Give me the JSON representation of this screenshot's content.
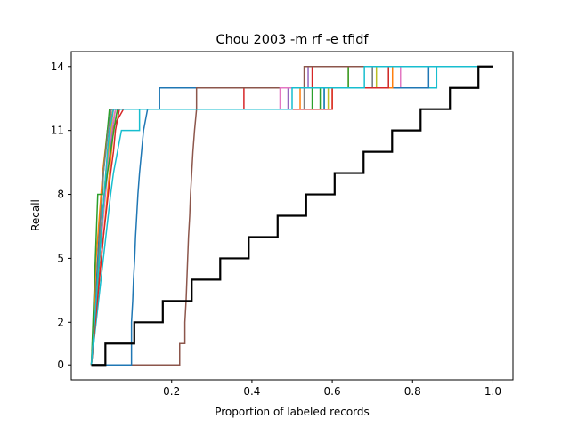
{
  "chart_data": {
    "type": "line",
    "title": "Chou 2003 -m rf -e tfidf",
    "xlabel": "Proportion of labeled records",
    "ylabel": "Recall",
    "xlim": [
      -0.05,
      1.05
    ],
    "ylim": [
      -0.7,
      14.7
    ],
    "xticks": [
      0.2,
      0.4,
      0.6,
      0.8,
      1.0
    ],
    "xtick_labels": [
      "0.2",
      "0.4",
      "0.6",
      "0.8",
      "1.0"
    ],
    "yticks": [
      0,
      2,
      5,
      8,
      11,
      14
    ],
    "ytick_labels": [
      "0",
      "2",
      "5",
      "8",
      "11",
      "14"
    ],
    "grid": false,
    "legend": "none",
    "series": [
      {
        "color": "#1f77b4",
        "width": 1.5,
        "points": [
          [
            0,
            0
          ],
          [
            0.003,
            1
          ],
          [
            0.006,
            2
          ],
          [
            0.01,
            3
          ],
          [
            0.013,
            4
          ],
          [
            0.016,
            5
          ],
          [
            0.019,
            6
          ],
          [
            0.022,
            7
          ],
          [
            0.026,
            8
          ],
          [
            0.03,
            9
          ],
          [
            0.035,
            10
          ],
          [
            0.04,
            11
          ],
          [
            0.05,
            12
          ],
          [
            0.17,
            12
          ],
          [
            0.17,
            13
          ],
          [
            0.7,
            13
          ],
          [
            0.7,
            14
          ],
          [
            0.97,
            14
          ]
        ]
      },
      {
        "color": "#ff7f0e",
        "width": 1.5,
        "points": [
          [
            0,
            0
          ],
          [
            0.004,
            1
          ],
          [
            0.008,
            3
          ],
          [
            0.012,
            5
          ],
          [
            0.02,
            7
          ],
          [
            0.028,
            9
          ],
          [
            0.034,
            10
          ],
          [
            0.04,
            11
          ],
          [
            0.055,
            12
          ],
          [
            0.52,
            12
          ],
          [
            0.52,
            13
          ],
          [
            0.64,
            13
          ],
          [
            0.64,
            14
          ],
          [
            0.97,
            14
          ]
        ]
      },
      {
        "color": "#2ca02c",
        "width": 1.5,
        "points": [
          [
            0,
            0
          ],
          [
            0.002,
            1
          ],
          [
            0.004,
            2
          ],
          [
            0.006,
            3
          ],
          [
            0.008,
            4
          ],
          [
            0.01,
            5
          ],
          [
            0.012,
            6
          ],
          [
            0.014,
            7
          ],
          [
            0.016,
            8
          ],
          [
            0.028,
            8
          ],
          [
            0.03,
            9
          ],
          [
            0.035,
            10
          ],
          [
            0.04,
            11
          ],
          [
            0.045,
            12
          ],
          [
            0.57,
            12
          ],
          [
            0.57,
            13
          ],
          [
            0.64,
            13
          ],
          [
            0.64,
            14
          ],
          [
            0.97,
            14
          ]
        ]
      },
      {
        "color": "#d62728",
        "width": 1.5,
        "points": [
          [
            0,
            0
          ],
          [
            0.005,
            1
          ],
          [
            0.009,
            2
          ],
          [
            0.013,
            3
          ],
          [
            0.017,
            4
          ],
          [
            0.021,
            5
          ],
          [
            0.025,
            6
          ],
          [
            0.029,
            7
          ],
          [
            0.033,
            8
          ],
          [
            0.04,
            9
          ],
          [
            0.045,
            10
          ],
          [
            0.05,
            11
          ],
          [
            0.08,
            12
          ],
          [
            0.38,
            12
          ],
          [
            0.38,
            13
          ],
          [
            0.55,
            13
          ],
          [
            0.55,
            14
          ],
          [
            0.97,
            14
          ]
        ]
      },
      {
        "color": "#9467bd",
        "width": 1.5,
        "points": [
          [
            0,
            0
          ],
          [
            0.004,
            1
          ],
          [
            0.008,
            2
          ],
          [
            0.012,
            3
          ],
          [
            0.016,
            4
          ],
          [
            0.02,
            5
          ],
          [
            0.025,
            6
          ],
          [
            0.03,
            7
          ],
          [
            0.035,
            8
          ],
          [
            0.04,
            9
          ],
          [
            0.046,
            10
          ],
          [
            0.052,
            11
          ],
          [
            0.06,
            12
          ],
          [
            0.49,
            12
          ],
          [
            0.49,
            13
          ],
          [
            0.54,
            13
          ],
          [
            0.54,
            14
          ],
          [
            0.97,
            14
          ]
        ]
      },
      {
        "color": "#8c564b",
        "width": 1.5,
        "points": [
          [
            0,
            0
          ],
          [
            0.22,
            0
          ],
          [
            0.22,
            1
          ],
          [
            0.233,
            1
          ],
          [
            0.233,
            2
          ],
          [
            0.236,
            3
          ],
          [
            0.238,
            4
          ],
          [
            0.24,
            5
          ],
          [
            0.242,
            6
          ],
          [
            0.245,
            7
          ],
          [
            0.247,
            8
          ],
          [
            0.25,
            9
          ],
          [
            0.253,
            10
          ],
          [
            0.257,
            11
          ],
          [
            0.262,
            12
          ],
          [
            0.262,
            13
          ],
          [
            0.53,
            13
          ],
          [
            0.53,
            14
          ],
          [
            0.97,
            14
          ]
        ]
      },
      {
        "color": "#e377c2",
        "width": 1.5,
        "points": [
          [
            0,
            0
          ],
          [
            0.004,
            1
          ],
          [
            0.008,
            2
          ],
          [
            0.012,
            3
          ],
          [
            0.016,
            4
          ],
          [
            0.02,
            5
          ],
          [
            0.026,
            6
          ],
          [
            0.03,
            7
          ],
          [
            0.034,
            8
          ],
          [
            0.038,
            9
          ],
          [
            0.044,
            10
          ],
          [
            0.05,
            11
          ],
          [
            0.06,
            12
          ],
          [
            0.47,
            12
          ],
          [
            0.47,
            13
          ],
          [
            0.77,
            13
          ],
          [
            0.77,
            14
          ],
          [
            0.97,
            14
          ]
        ]
      },
      {
        "color": "#7f7f7f",
        "width": 1.5,
        "points": [
          [
            0,
            0
          ],
          [
            0.006,
            1
          ],
          [
            0.012,
            3
          ],
          [
            0.018,
            5
          ],
          [
            0.024,
            7
          ],
          [
            0.03,
            9
          ],
          [
            0.036,
            10
          ],
          [
            0.042,
            11
          ],
          [
            0.05,
            12
          ],
          [
            0.53,
            12
          ],
          [
            0.53,
            13
          ],
          [
            0.7,
            13
          ],
          [
            0.7,
            14
          ],
          [
            0.97,
            14
          ]
        ]
      },
      {
        "color": "#bcbd22",
        "width": 1.5,
        "points": [
          [
            0,
            0
          ],
          [
            0.004,
            1
          ],
          [
            0.008,
            2
          ],
          [
            0.012,
            3
          ],
          [
            0.016,
            4
          ],
          [
            0.02,
            5
          ],
          [
            0.024,
            6
          ],
          [
            0.028,
            7
          ],
          [
            0.032,
            8
          ],
          [
            0.036,
            9
          ],
          [
            0.042,
            10
          ],
          [
            0.048,
            11
          ],
          [
            0.055,
            12
          ],
          [
            0.59,
            12
          ],
          [
            0.59,
            13
          ],
          [
            0.71,
            13
          ],
          [
            0.71,
            14
          ],
          [
            0.97,
            14
          ]
        ]
      },
      {
        "color": "#17becf",
        "width": 1.5,
        "points": [
          [
            0,
            0
          ],
          [
            0.006,
            1
          ],
          [
            0.012,
            2
          ],
          [
            0.018,
            3
          ],
          [
            0.024,
            4
          ],
          [
            0.03,
            5
          ],
          [
            0.036,
            6
          ],
          [
            0.042,
            7
          ],
          [
            0.048,
            8
          ],
          [
            0.055,
            9
          ],
          [
            0.065,
            10
          ],
          [
            0.075,
            11
          ],
          [
            0.12,
            11
          ],
          [
            0.12,
            12
          ],
          [
            0.58,
            12
          ],
          [
            0.58,
            13
          ],
          [
            0.86,
            13
          ],
          [
            0.86,
            14
          ],
          [
            0.97,
            14
          ]
        ]
      },
      {
        "color": "#1f77b4",
        "width": 1.5,
        "points": [
          [
            0,
            0
          ],
          [
            0.1,
            0
          ],
          [
            0.1,
            2
          ],
          [
            0.103,
            3
          ],
          [
            0.105,
            4
          ],
          [
            0.108,
            5
          ],
          [
            0.11,
            6
          ],
          [
            0.113,
            7
          ],
          [
            0.116,
            8
          ],
          [
            0.12,
            9
          ],
          [
            0.125,
            10
          ],
          [
            0.13,
            11
          ],
          [
            0.14,
            12
          ],
          [
            0.58,
            12
          ],
          [
            0.58,
            13
          ],
          [
            0.84,
            13
          ],
          [
            0.84,
            14
          ],
          [
            0.97,
            14
          ]
        ]
      },
      {
        "color": "#ff7f0e",
        "width": 1.5,
        "points": [
          [
            0,
            0
          ],
          [
            0.005,
            1
          ],
          [
            0.01,
            2
          ],
          [
            0.015,
            3
          ],
          [
            0.02,
            4
          ],
          [
            0.025,
            5
          ],
          [
            0.03,
            6
          ],
          [
            0.035,
            7
          ],
          [
            0.04,
            8
          ],
          [
            0.045,
            9
          ],
          [
            0.05,
            10
          ],
          [
            0.055,
            11
          ],
          [
            0.065,
            12
          ],
          [
            0.6,
            12
          ],
          [
            0.6,
            13
          ],
          [
            0.75,
            13
          ],
          [
            0.75,
            14
          ],
          [
            0.97,
            14
          ]
        ]
      },
      {
        "color": "#2ca02c",
        "width": 1.5,
        "points": [
          [
            0,
            0
          ],
          [
            0.004,
            1
          ],
          [
            0.008,
            2
          ],
          [
            0.012,
            3
          ],
          [
            0.016,
            4
          ],
          [
            0.02,
            5
          ],
          [
            0.024,
            6
          ],
          [
            0.028,
            7
          ],
          [
            0.032,
            8
          ],
          [
            0.04,
            9
          ],
          [
            0.048,
            10
          ],
          [
            0.056,
            11
          ],
          [
            0.065,
            12
          ],
          [
            0.55,
            12
          ],
          [
            0.55,
            13
          ],
          [
            0.74,
            13
          ],
          [
            0.74,
            14
          ],
          [
            0.97,
            14
          ]
        ]
      },
      {
        "color": "#d62728",
        "width": 1.5,
        "points": [
          [
            0,
            0
          ],
          [
            0.005,
            1
          ],
          [
            0.01,
            2
          ],
          [
            0.015,
            3
          ],
          [
            0.02,
            4
          ],
          [
            0.025,
            5
          ],
          [
            0.03,
            6
          ],
          [
            0.036,
            7
          ],
          [
            0.042,
            8
          ],
          [
            0.048,
            9
          ],
          [
            0.055,
            10
          ],
          [
            0.06,
            11
          ],
          [
            0.07,
            12
          ],
          [
            0.6,
            12
          ],
          [
            0.6,
            13
          ],
          [
            0.74,
            13
          ],
          [
            0.74,
            14
          ],
          [
            0.97,
            14
          ]
        ]
      },
      {
        "color": "#17becf",
        "width": 1.5,
        "points": [
          [
            0,
            0
          ],
          [
            0.004,
            1
          ],
          [
            0.008,
            2
          ],
          [
            0.012,
            3
          ],
          [
            0.016,
            4
          ],
          [
            0.02,
            5
          ],
          [
            0.024,
            6
          ],
          [
            0.028,
            7
          ],
          [
            0.032,
            8
          ],
          [
            0.036,
            9
          ],
          [
            0.04,
            10
          ],
          [
            0.045,
            11
          ],
          [
            0.055,
            12
          ],
          [
            0.5,
            12
          ],
          [
            0.5,
            13
          ],
          [
            0.68,
            13
          ],
          [
            0.68,
            14
          ],
          [
            0.97,
            14
          ]
        ]
      },
      {
        "color": "#000000",
        "width": 2.2,
        "points": [
          [
            0,
            0
          ],
          [
            0.035,
            0
          ],
          [
            0.035,
            1
          ],
          [
            0.107,
            1
          ],
          [
            0.107,
            2
          ],
          [
            0.178,
            2
          ],
          [
            0.178,
            3
          ],
          [
            0.25,
            3
          ],
          [
            0.25,
            4
          ],
          [
            0.321,
            4
          ],
          [
            0.321,
            5
          ],
          [
            0.392,
            5
          ],
          [
            0.392,
            6
          ],
          [
            0.464,
            6
          ],
          [
            0.464,
            7
          ],
          [
            0.535,
            7
          ],
          [
            0.535,
            8
          ],
          [
            0.606,
            8
          ],
          [
            0.606,
            9
          ],
          [
            0.678,
            9
          ],
          [
            0.678,
            10
          ],
          [
            0.749,
            10
          ],
          [
            0.749,
            11
          ],
          [
            0.82,
            11
          ],
          [
            0.82,
            12
          ],
          [
            0.893,
            12
          ],
          [
            0.893,
            13
          ],
          [
            0.964,
            13
          ],
          [
            0.964,
            14
          ],
          [
            1.0,
            14
          ]
        ]
      }
    ]
  }
}
